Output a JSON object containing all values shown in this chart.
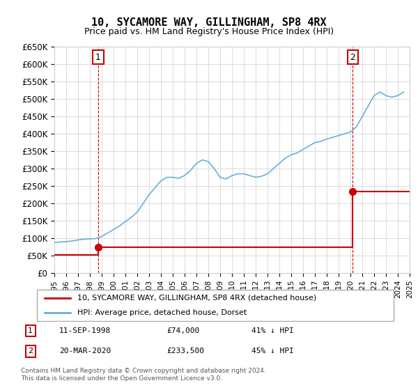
{
  "title": "10, SYCAMORE WAY, GILLINGHAM, SP8 4RX",
  "subtitle": "Price paid vs. HM Land Registry's House Price Index (HPI)",
  "ylabel_ticks": [
    "£0",
    "£50K",
    "£100K",
    "£150K",
    "£200K",
    "£250K",
    "£300K",
    "£350K",
    "£400K",
    "£450K",
    "£500K",
    "£550K",
    "£600K",
    "£650K"
  ],
  "ylim": [
    0,
    650000
  ],
  "ytick_vals": [
    0,
    50000,
    100000,
    150000,
    200000,
    250000,
    300000,
    350000,
    400000,
    450000,
    500000,
    550000,
    600000,
    650000
  ],
  "hpi_color": "#6baed6",
  "price_color": "#cc0000",
  "point1_date": "11-SEP-1998",
  "point1_price": 74000,
  "point1_label": "41% ↓ HPI",
  "point2_date": "20-MAR-2020",
  "point2_price": 233500,
  "point2_label": "45% ↓ HPI",
  "legend_entry1": "10, SYCAMORE WAY, GILLINGHAM, SP8 4RX (detached house)",
  "legend_entry2": "HPI: Average price, detached house, Dorset",
  "footnote1": "Contains HM Land Registry data © Crown copyright and database right 2024.",
  "footnote2": "This data is licensed under the Open Government Licence v3.0.",
  "hpi_x": [
    1995.0,
    1995.5,
    1996.0,
    1996.5,
    1997.0,
    1997.5,
    1998.0,
    1998.5,
    1999.0,
    1999.5,
    2000.0,
    2000.5,
    2001.0,
    2001.5,
    2002.0,
    2002.5,
    2003.0,
    2003.5,
    2004.0,
    2004.5,
    2005.0,
    2005.5,
    2006.0,
    2006.5,
    2007.0,
    2007.5,
    2008.0,
    2008.5,
    2009.0,
    2009.5,
    2010.0,
    2010.5,
    2011.0,
    2011.5,
    2012.0,
    2012.5,
    2013.0,
    2013.5,
    2014.0,
    2014.5,
    2015.0,
    2015.5,
    2016.0,
    2016.5,
    2017.0,
    2017.5,
    2018.0,
    2018.5,
    2019.0,
    2019.5,
    2020.0,
    2020.5,
    2021.0,
    2021.5,
    2022.0,
    2022.5,
    2023.0,
    2023.5,
    2024.0,
    2024.5
  ],
  "hpi_y": [
    88000,
    89000,
    90000,
    92000,
    95000,
    97000,
    98000,
    99000,
    105000,
    115000,
    125000,
    135000,
    148000,
    160000,
    175000,
    200000,
    225000,
    245000,
    265000,
    275000,
    275000,
    272000,
    280000,
    295000,
    315000,
    325000,
    320000,
    300000,
    275000,
    270000,
    280000,
    285000,
    285000,
    280000,
    275000,
    278000,
    285000,
    300000,
    315000,
    330000,
    340000,
    345000,
    355000,
    365000,
    375000,
    378000,
    385000,
    390000,
    395000,
    400000,
    405000,
    420000,
    450000,
    480000,
    510000,
    520000,
    510000,
    505000,
    510000,
    520000
  ],
  "price_x": [
    1995.0,
    1998.7,
    1998.7,
    2020.2,
    2020.2,
    2025.0
  ],
  "price_y": [
    52000,
    52000,
    74000,
    74000,
    233500,
    233500
  ],
  "point1_x": 1998.7,
  "point1_y": 74000,
  "point2_x": 2020.2,
  "point2_y": 233500,
  "vline1_x": 1998.7,
  "vline2_x": 2020.2,
  "xmin": 1995,
  "xmax": 2025
}
